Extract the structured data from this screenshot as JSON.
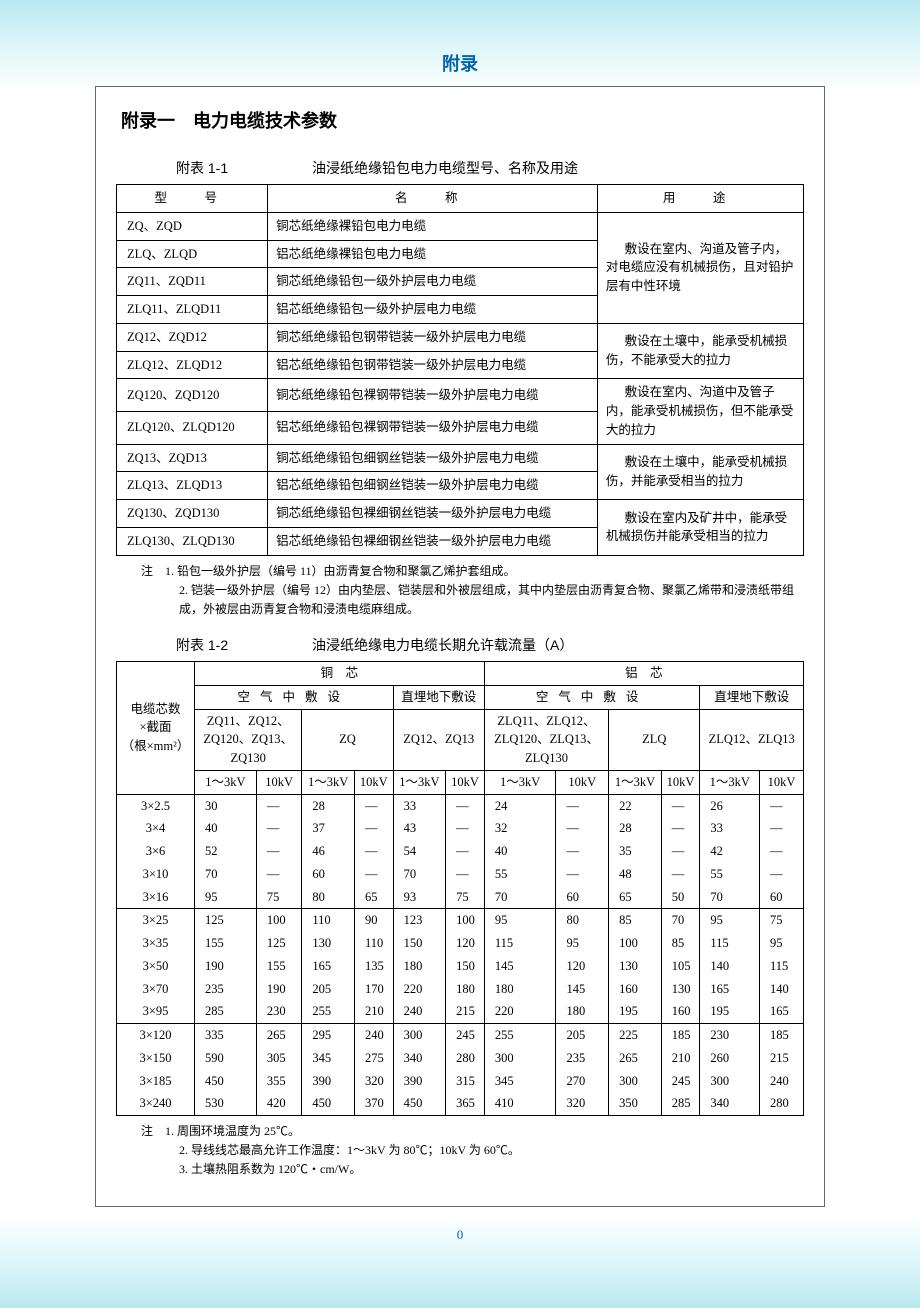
{
  "doc_title": "附录",
  "section_title": "附录一　电力电缆技术参数",
  "page_number": "0",
  "table1": {
    "caption_num": "附表 1-1",
    "caption_title": "油浸纸绝缘铅包电力电缆型号、名称及用途",
    "headers": {
      "model": "型　号",
      "name": "名　称",
      "use": "用　途"
    },
    "groups": [
      {
        "use": "敷设在室内、沟道及管子内，对电缆应没有机械损伤，且对铅护层有中性环境",
        "rows": [
          {
            "model": "ZQ、ZQD",
            "name": "铜芯纸绝缘裸铅包电力电缆"
          },
          {
            "model": "ZLQ、ZLQD",
            "name": "铝芯纸绝缘裸铅包电力电缆"
          },
          {
            "model": "ZQ11、ZQD11",
            "name": "铜芯纸绝缘铅包一级外护层电力电缆"
          },
          {
            "model": "ZLQ11、ZLQD11",
            "name": "铝芯纸绝缘铅包一级外护层电力电缆"
          }
        ]
      },
      {
        "use": "敷设在土壤中，能承受机械损伤，不能承受大的拉力",
        "rows": [
          {
            "model": "ZQ12、ZQD12",
            "name": "铜芯纸绝缘铅包钢带铠装一级外护层电力电缆"
          },
          {
            "model": "ZLQ12、ZLQD12",
            "name": "铝芯纸绝缘铅包钢带铠装一级外护层电力电缆"
          }
        ]
      },
      {
        "use": "敷设在室内、沟道中及管子内，能承受机械损伤，但不能承受大的拉力",
        "rows": [
          {
            "model": "ZQ120、ZQD120",
            "name": "铜芯纸绝缘铅包裸钢带铠装一级外护层电力电缆"
          },
          {
            "model": "ZLQ120、ZLQD120",
            "name": "铝芯纸绝缘铅包裸钢带铠装一级外护层电力电缆"
          }
        ]
      },
      {
        "use": "敷设在土壤中，能承受机械损伤，并能承受相当的拉力",
        "rows": [
          {
            "model": "ZQ13、ZQD13",
            "name": "铜芯纸绝缘铅包细钢丝铠装一级外护层电力电缆"
          },
          {
            "model": "ZLQ13、ZLQD13",
            "name": "铝芯纸绝缘铅包细钢丝铠装一级外护层电力电缆"
          }
        ]
      },
      {
        "use": "敷设在室内及矿井中，能承受机械损伤并能承受相当的拉力",
        "rows": [
          {
            "model": "ZQ130、ZQD130",
            "name": "铜芯纸绝缘铅包裸细钢丝铠装一级外护层电力电缆"
          },
          {
            "model": "ZLQ130、ZLQD130",
            "name": "铝芯纸绝缘铅包裸细钢丝铠装一级外护层电力电缆"
          }
        ]
      }
    ],
    "notes": [
      "注　1. 铅包一级外护层（编号 11）由沥青复合物和聚氯乙烯护套组成。",
      "2. 铠装一级外护层（编号 12）由内垫层、铠装层和外被层组成，其中内垫层由沥青复合物、聚氯乙烯带和浸渍纸带组成，外被层由沥青复合物和浸渍电缆麻组成。"
    ]
  },
  "table2": {
    "caption_num": "附表 1-2",
    "caption_title": "油浸纸绝缘电力电缆长期允许载流量（A）",
    "rowlabel_html": "电缆芯数<br>×截面<br>（根×mm²）",
    "top_headers": {
      "cu": "铜　芯",
      "al": "铝　芯"
    },
    "mid_headers": {
      "air": "空气中敷设",
      "ground": "直埋地下敷设"
    },
    "col_groups": [
      "ZQ11、ZQ12、<br>ZQ120、ZQ13、<br>ZQ130",
      "ZQ",
      "ZQ12、ZQ13",
      "ZLQ11、ZLQ12、<br>ZLQ120、ZLQ13、<br>ZLQ130",
      "ZLQ",
      "ZLQ12、ZLQ13"
    ],
    "kv_headers": [
      "1～3kV",
      "10kV"
    ],
    "blocks": [
      [
        [
          "3×2.5",
          "30",
          "—",
          "28",
          "—",
          "33",
          "—",
          "24",
          "—",
          "22",
          "—",
          "26",
          "—"
        ],
        [
          "3×4",
          "40",
          "—",
          "37",
          "—",
          "43",
          "—",
          "32",
          "—",
          "28",
          "—",
          "33",
          "—"
        ],
        [
          "3×6",
          "52",
          "—",
          "46",
          "—",
          "54",
          "—",
          "40",
          "—",
          "35",
          "—",
          "42",
          "—"
        ],
        [
          "3×10",
          "70",
          "—",
          "60",
          "—",
          "70",
          "—",
          "55",
          "—",
          "48",
          "—",
          "55",
          "—"
        ],
        [
          "3×16",
          "95",
          "75",
          "80",
          "65",
          "93",
          "75",
          "70",
          "60",
          "65",
          "50",
          "70",
          "60"
        ]
      ],
      [
        [
          "3×25",
          "125",
          "100",
          "110",
          "90",
          "123",
          "100",
          "95",
          "80",
          "85",
          "70",
          "95",
          "75"
        ],
        [
          "3×35",
          "155",
          "125",
          "130",
          "110",
          "150",
          "120",
          "115",
          "95",
          "100",
          "85",
          "115",
          "95"
        ],
        [
          "3×50",
          "190",
          "155",
          "165",
          "135",
          "180",
          "150",
          "145",
          "120",
          "130",
          "105",
          "140",
          "115"
        ],
        [
          "3×70",
          "235",
          "190",
          "205",
          "170",
          "220",
          "180",
          "180",
          "145",
          "160",
          "130",
          "165",
          "140"
        ],
        [
          "3×95",
          "285",
          "230",
          "255",
          "210",
          "240",
          "215",
          "220",
          "180",
          "195",
          "160",
          "195",
          "165"
        ]
      ],
      [
        [
          "3×120",
          "335",
          "265",
          "295",
          "240",
          "300",
          "245",
          "255",
          "205",
          "225",
          "185",
          "230",
          "185"
        ],
        [
          "3×150",
          "590",
          "305",
          "345",
          "275",
          "340",
          "280",
          "300",
          "235",
          "265",
          "210",
          "260",
          "215"
        ],
        [
          "3×185",
          "450",
          "355",
          "390",
          "320",
          "390",
          "315",
          "345",
          "270",
          "300",
          "245",
          "300",
          "240"
        ],
        [
          "3×240",
          "530",
          "420",
          "450",
          "370",
          "450",
          "365",
          "410",
          "320",
          "350",
          "285",
          "340",
          "280"
        ]
      ]
    ],
    "notes": [
      "注　1. 周围环境温度为 25℃。",
      "2. 导线线芯最高允许工作温度：1～3kV 为 80℃；10kV 为 60℃。",
      "3. 土壤热阻系数为 120℃・cm/W。"
    ]
  }
}
